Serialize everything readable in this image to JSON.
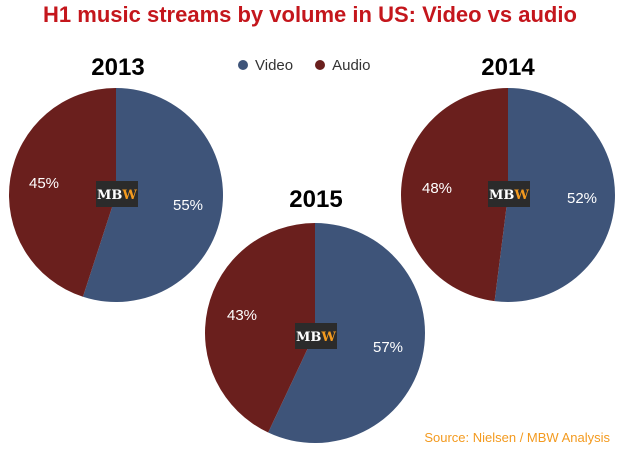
{
  "title": "H1 music streams by volume in US: Video vs audio",
  "legend": [
    {
      "label": "Video",
      "color": "#3e5479"
    },
    {
      "label": "Audio",
      "color": "#6a1f1d"
    }
  ],
  "logo": {
    "text_a": "MB",
    "text_b": "W",
    "bg": "#2b2b2b",
    "color_a": "#ffffff",
    "color_b": "#f39a1f"
  },
  "source": "Source: Nielsen / MBW Analysis",
  "chart_data": [
    {
      "type": "pie",
      "title": "2013",
      "categories": [
        "Video",
        "Audio"
      ],
      "values": [
        55,
        45
      ],
      "labels": [
        "55%",
        "45%"
      ]
    },
    {
      "type": "pie",
      "title": "2014",
      "categories": [
        "Video",
        "Audio"
      ],
      "values": [
        52,
        48
      ],
      "labels": [
        "52%",
        "48%"
      ]
    },
    {
      "type": "pie",
      "title": "2015",
      "categories": [
        "Video",
        "Audio"
      ],
      "values": [
        57,
        43
      ],
      "labels": [
        "57%",
        "43%"
      ]
    }
  ]
}
